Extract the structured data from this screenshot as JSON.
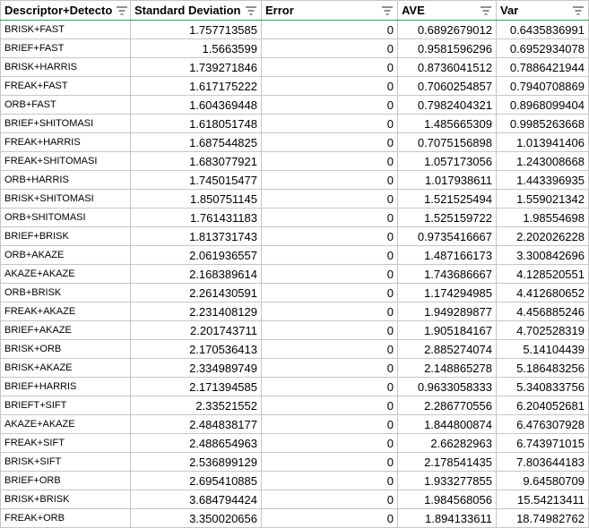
{
  "columns": [
    {
      "label": "Descriptor+Detecto",
      "filter_icon": "filter-icon"
    },
    {
      "label": "Standard Deviation",
      "filter_icon": "filter-icon"
    },
    {
      "label": "Error",
      "filter_icon": "filter-icon"
    },
    {
      "label": "AVE",
      "filter_icon": "filter-icon"
    },
    {
      "label": "Var",
      "filter_icon": "filter-icon"
    }
  ],
  "rows": [
    {
      "name": "BRISK+FAST",
      "sd": "1.757713585",
      "err": "0",
      "ave": "0.6892679012",
      "var": "0.6435836991"
    },
    {
      "name": "BRIEF+FAST",
      "sd": "1.5663599",
      "err": "0",
      "ave": "0.9581596296",
      "var": "0.6952934078"
    },
    {
      "name": "BRISK+HARRIS",
      "sd": "1.739271846",
      "err": "0",
      "ave": "0.8736041512",
      "var": "0.7886421944"
    },
    {
      "name": "FREAK+FAST",
      "sd": "1.617175222",
      "err": "0",
      "ave": "0.7060254857",
      "var": "0.7940708869"
    },
    {
      "name": "ORB+FAST",
      "sd": "1.604369448",
      "err": "0",
      "ave": "0.7982404321",
      "var": "0.8968099404"
    },
    {
      "name": "BRIEF+SHITOMASI",
      "sd": "1.618051748",
      "err": "0",
      "ave": "1.485665309",
      "var": "0.9985263668"
    },
    {
      "name": "FREAK+HARRIS",
      "sd": "1.687544825",
      "err": "0",
      "ave": "0.7075156898",
      "var": "1.013941406"
    },
    {
      "name": "FREAK+SHITOMASI",
      "sd": "1.683077921",
      "err": "0",
      "ave": "1.057173056",
      "var": "1.243008668"
    },
    {
      "name": "ORB+HARRIS",
      "sd": "1.745015477",
      "err": "0",
      "ave": "1.017938611",
      "var": "1.443396935"
    },
    {
      "name": "BRISK+SHITOMASI",
      "sd": "1.850751145",
      "err": "0",
      "ave": "1.521525494",
      "var": "1.559021342"
    },
    {
      "name": "ORB+SHITOMASI",
      "sd": "1.761431183",
      "err": "0",
      "ave": "1.525159722",
      "var": "1.98554698"
    },
    {
      "name": "BRIEF+BRISK",
      "sd": "1.813731743",
      "err": "0",
      "ave": "0.9735416667",
      "var": "2.202026228"
    },
    {
      "name": "ORB+AKAZE",
      "sd": "2.061936557",
      "err": "0",
      "ave": "1.487166173",
      "var": "3.300842696"
    },
    {
      "name": "AKAZE+AKAZE",
      "sd": "2.168389614",
      "err": "0",
      "ave": "1.743686667",
      "var": "4.128520551"
    },
    {
      "name": "ORB+BRISK",
      "sd": "2.261430591",
      "err": "0",
      "ave": "1.174294985",
      "var": "4.412680652"
    },
    {
      "name": "FREAK+AKAZE",
      "sd": "2.231408129",
      "err": "0",
      "ave": "1.949289877",
      "var": "4.456885246"
    },
    {
      "name": "BRIEF+AKAZE",
      "sd": "2.201743711",
      "err": "0",
      "ave": "1.905184167",
      "var": "4.702528319"
    },
    {
      "name": "BRISK+ORB",
      "sd": "2.170536413",
      "err": "0",
      "ave": "2.885274074",
      "var": "5.14104439"
    },
    {
      "name": "BRISK+AKAZE",
      "sd": "2.334989749",
      "err": "0",
      "ave": "2.148865278",
      "var": "5.186483256"
    },
    {
      "name": "BRIEF+HARRIS",
      "sd": "2.171394585",
      "err": "0",
      "ave": "0.9633058333",
      "var": "5.340833756"
    },
    {
      "name": "BRIEFT+SIFT",
      "sd": "2.33521552",
      "err": "0",
      "ave": "2.286770556",
      "var": "6.204052681"
    },
    {
      "name": "AKAZE+AKAZE",
      "sd": "2.484838177",
      "err": "0",
      "ave": "1.844800874",
      "var": "6.476307928"
    },
    {
      "name": "FREAK+SIFT",
      "sd": "2.488654963",
      "err": "0",
      "ave": "2.66282963",
      "var": "6.743971015"
    },
    {
      "name": "BRISK+SIFT",
      "sd": "2.536899129",
      "err": "0",
      "ave": "2.178541435",
      "var": "7.803644183"
    },
    {
      "name": "BRIEF+ORB",
      "sd": "2.695410885",
      "err": "0",
      "ave": "1.933277855",
      "var": "9.64580709"
    },
    {
      "name": "BRISK+BRISK",
      "sd": "3.684794424",
      "err": "0",
      "ave": "1.984568056",
      "var": "15.54213411"
    },
    {
      "name": "FREAK+ORB",
      "sd": "3.350020656",
      "err": "0",
      "ave": "1.894133611",
      "var": "18.74982762"
    }
  ]
}
